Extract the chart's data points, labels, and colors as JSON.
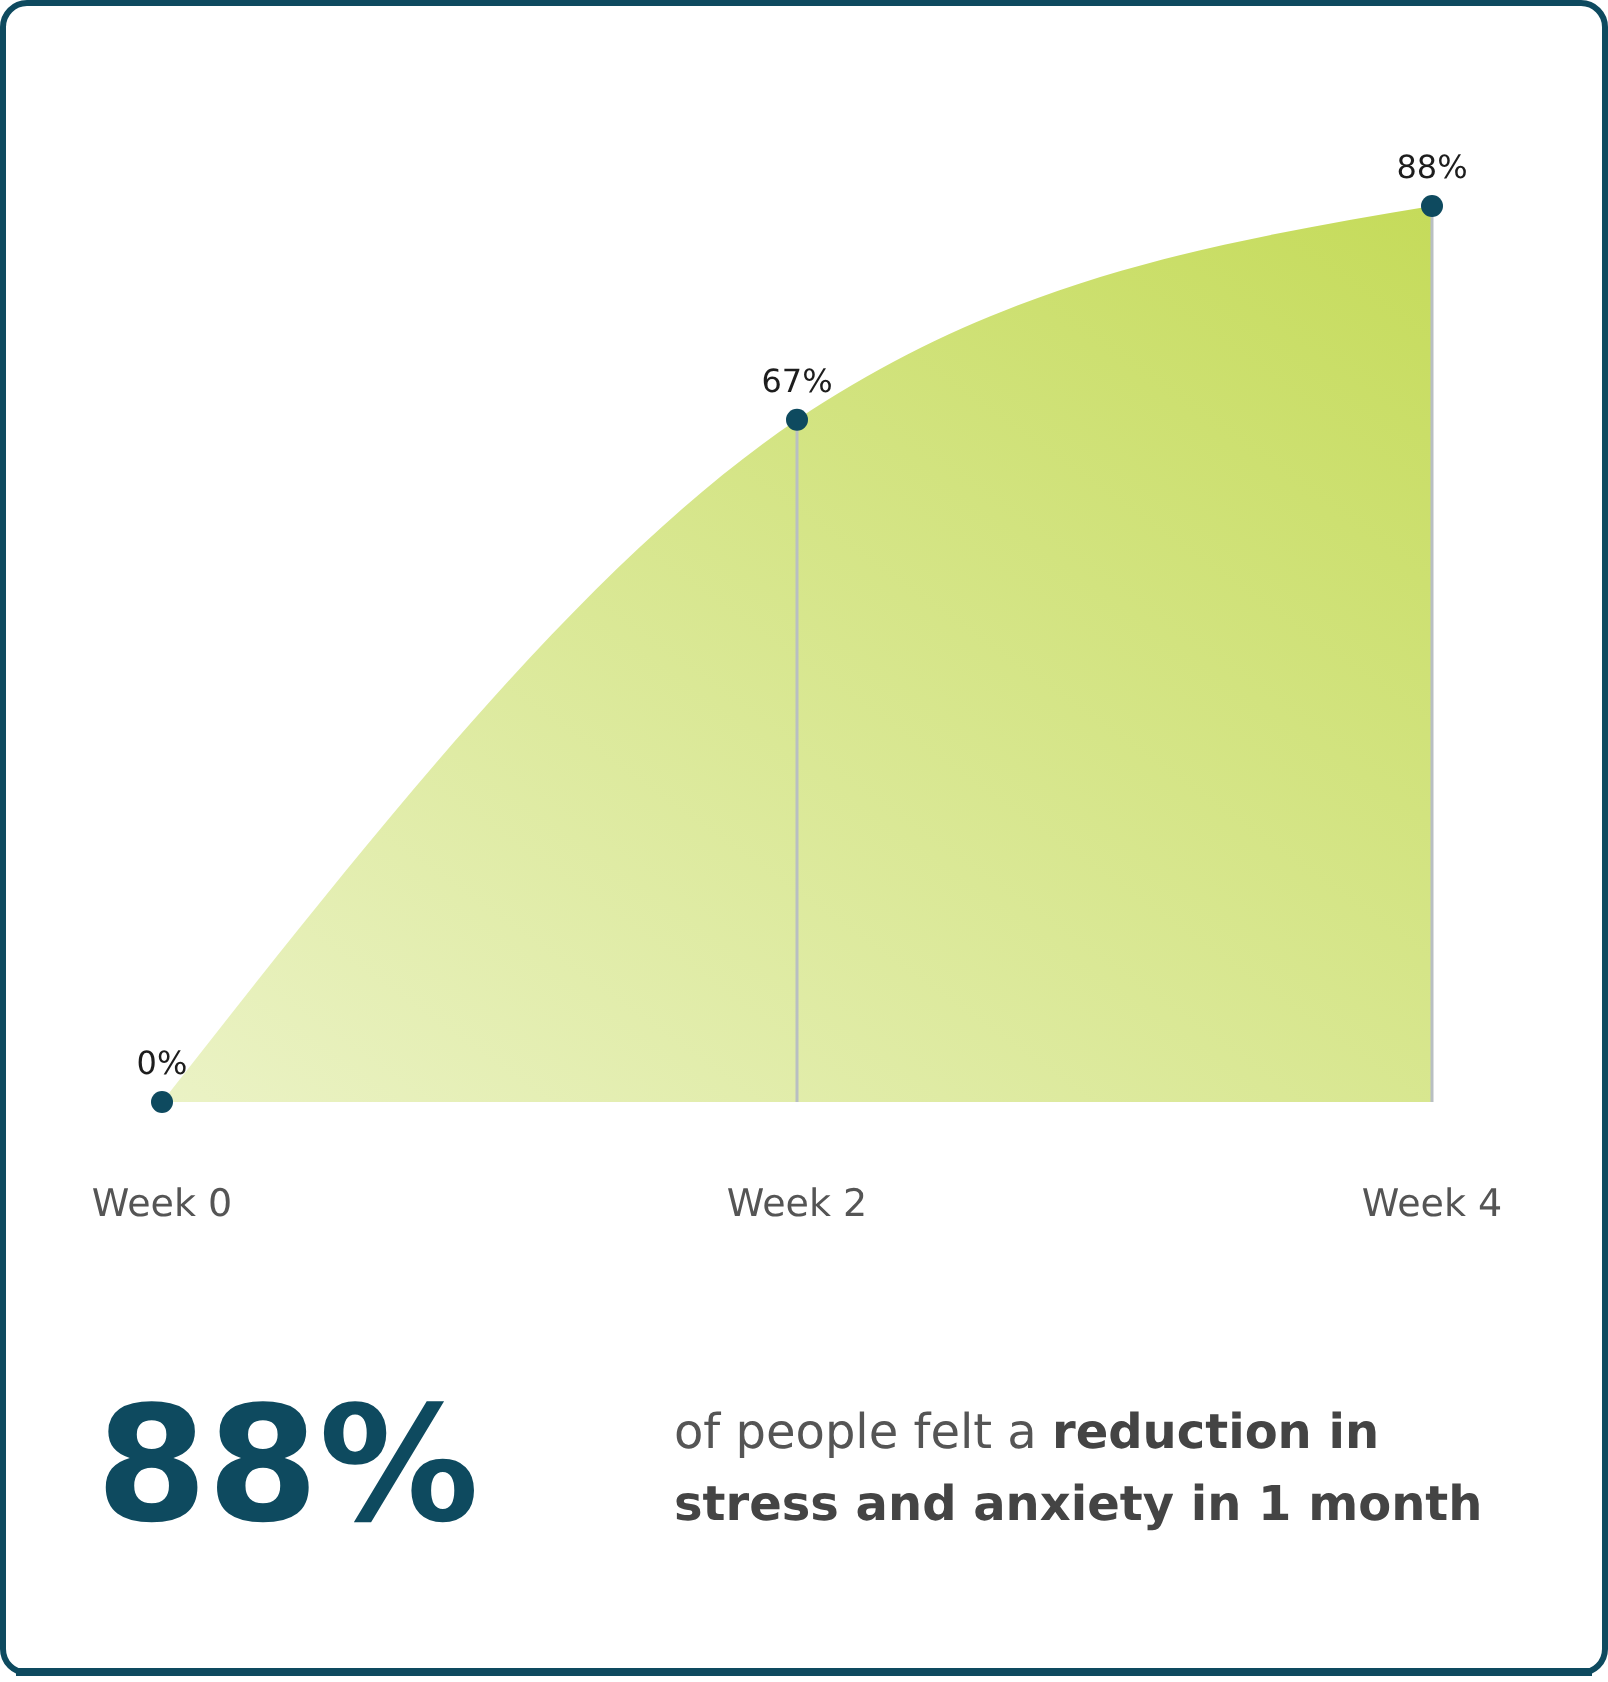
{
  "chart_data": {
    "type": "area",
    "categories": [
      "Week 0",
      "Week 2",
      "Week 4"
    ],
    "series": [
      {
        "color": "#c5db5a",
        "values": [
          0,
          67,
          88
        ],
        "value_labels": [
          "0%",
          "67%",
          "88%"
        ]
      }
    ],
    "marker": "circle",
    "annotations": [
      "88%",
      "of people felt a",
      "reduction in stress and anxiety in 1 month"
    ]
  }
}
